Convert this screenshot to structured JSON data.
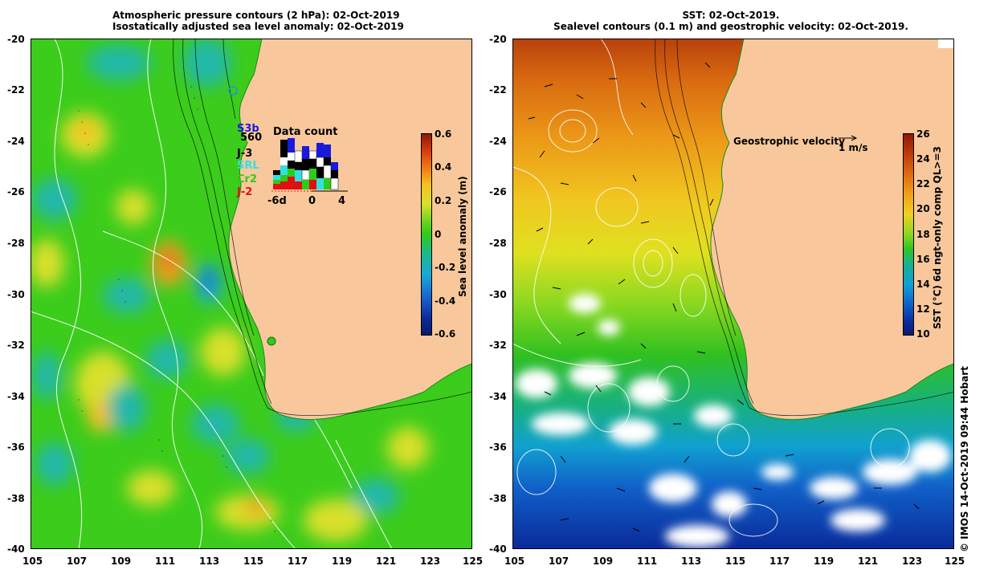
{
  "left_panel": {
    "title_line1": "Atmospheric pressure contours (2 hPa): 02-Oct-2019",
    "title_line2": "Isostatically adjusted sea level anomaly: 02-Oct-2019",
    "colorbar": {
      "label": "Sea level anomaly (m)",
      "ticks": [
        "0.6",
        "0.4",
        "0.2",
        "0",
        "-0.2",
        "-0.4",
        "-0.6"
      ],
      "min": -0.6,
      "max": 0.6
    },
    "data_count": {
      "title": "Data count",
      "satellites": [
        {
          "name": "S3b",
          "color": "#1a1adc"
        },
        {
          "name": "560",
          "color": "#000000"
        },
        {
          "name": "J-3",
          "color": "#000000"
        },
        {
          "name": "SRL",
          "color": "#33e0e0"
        },
        {
          "name": "Cr2",
          "color": "#2ecc1a"
        },
        {
          "name": "J-2",
          "color": "#e01010"
        }
      ],
      "axis_labels": [
        "-6d",
        "0",
        "4"
      ]
    }
  },
  "right_panel": {
    "title_line1": "SST: 02-Oct-2019.",
    "title_line2": "Sealevel contours (0.1 m) and geostrophic velocity: 02-Oct-2019.",
    "velocity_legend": "Geostrophic velocity",
    "velocity_scale": "1 m/s",
    "colorbar": {
      "label": "SST (°C) 6d ngt-only comp QL>=3",
      "ticks": [
        "26",
        "24",
        "22",
        "20",
        "18",
        "16",
        "14",
        "12",
        "10"
      ],
      "min": 10,
      "max": 26
    }
  },
  "x_axis_ticks": [
    "105",
    "107",
    "109",
    "111",
    "113",
    "115",
    "117",
    "119",
    "121",
    "123",
    "125"
  ],
  "y_axis_ticks": [
    "-20",
    "-22",
    "-24",
    "-26",
    "-28",
    "-30",
    "-32",
    "-34",
    "-36",
    "-38",
    "-40"
  ],
  "credit": "© IMOS 14-Oct-2019 09:44 Hobart",
  "colors": {
    "land": "#f8c89c",
    "sla_green": "#2ec81a",
    "sst_warm": "#d86a10",
    "sst_cold": "#0a2aa0"
  }
}
